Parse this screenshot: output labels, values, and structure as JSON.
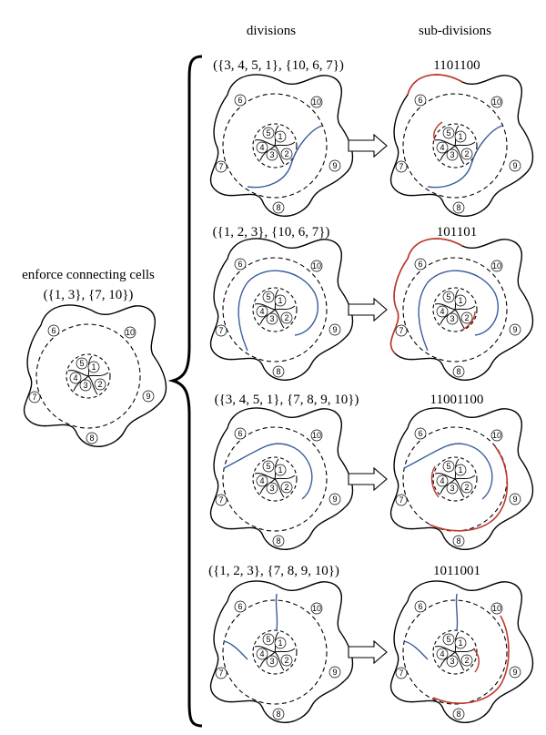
{
  "headers": {
    "divisions": "divisions",
    "subdivisions": "sub-divisions"
  },
  "left": {
    "title_line1": "enforce connecting cells",
    "title_line2": "({1, 3}, {7, 10})"
  },
  "rows": [
    {
      "division_label": "({3, 4, 5, 1}, {10, 6, 7})",
      "subdivision_label": "1101100"
    },
    {
      "division_label": "({1, 2, 3}, {10, 6, 7})",
      "subdivision_label": "101101"
    },
    {
      "division_label": "({3, 4, 5, 1}, {7, 8, 9, 10})",
      "subdivision_label": "11001100"
    },
    {
      "division_label": "({1, 2, 3}, {7, 8, 9, 10})",
      "subdivision_label": "1011001"
    }
  ],
  "cell_numbers": [
    "1",
    "2",
    "3",
    "4",
    "5",
    "6",
    "7",
    "8",
    "9",
    "10"
  ],
  "colors": {
    "blue": "#3a5d9c",
    "red": "#c0392b",
    "black": "#000000"
  }
}
